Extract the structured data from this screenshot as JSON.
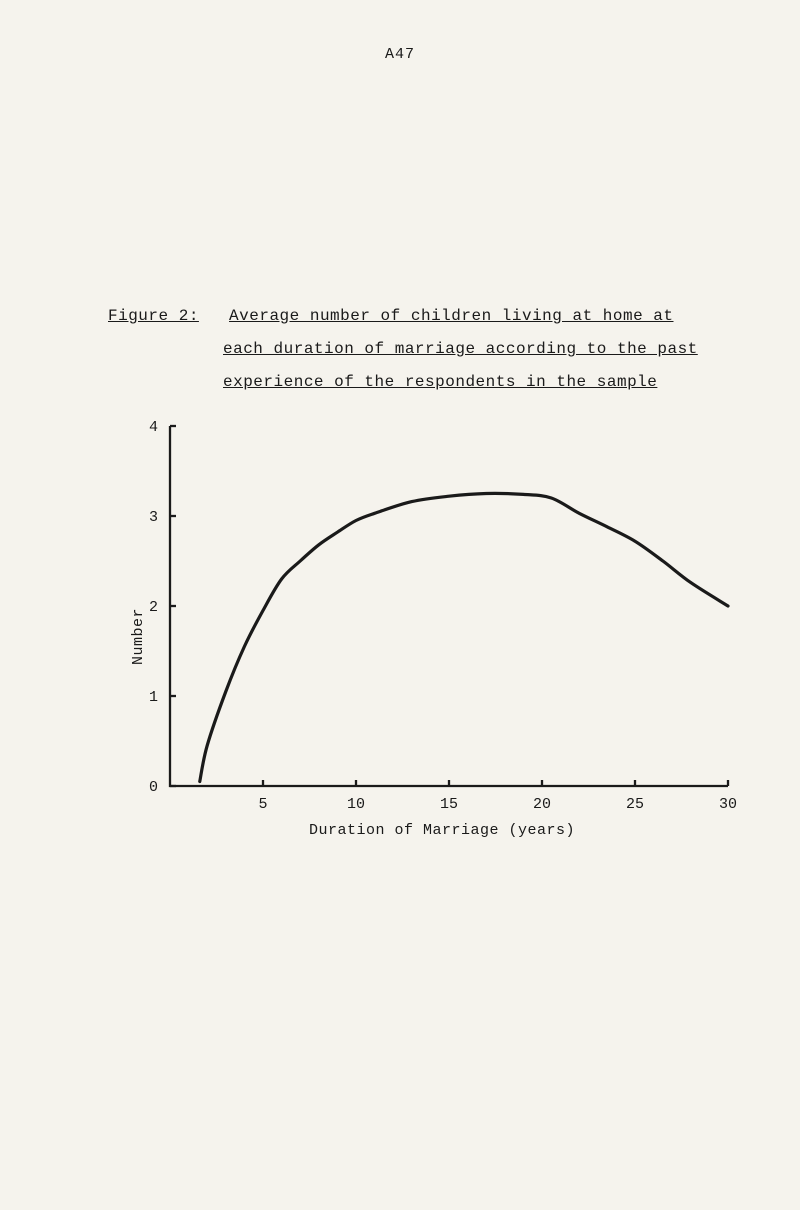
{
  "page_number": "A47",
  "caption": {
    "lead": "Figure 2:",
    "line1": "Average number of children living at home at",
    "line2": "each duration of marriage according to the past",
    "line3": "experience of the respondents in the sample"
  },
  "chart": {
    "type": "line",
    "background_color": "#f5f3ed",
    "axis_color": "#1a1a1a",
    "line_color": "#1a1a1a",
    "line_width": 3.2,
    "axis_width": 2.3,
    "xlabel": "Duration of Marriage (years)",
    "ylabel": "Number",
    "xlim": [
      0,
      30
    ],
    "ylim": [
      0,
      4
    ],
    "xtick_values": [
      5,
      10,
      15,
      20,
      25,
      30
    ],
    "xtick_labels": [
      "5",
      "10",
      "15",
      "20",
      "25",
      "30"
    ],
    "ytick_values": [
      0,
      1,
      2,
      3,
      4
    ],
    "ytick_labels": [
      "0",
      "1",
      "2",
      "3",
      "4"
    ],
    "series": {
      "x": [
        1.6,
        2,
        3,
        4,
        5,
        6,
        7,
        8,
        9,
        10,
        11,
        13,
        15,
        17,
        19,
        20.5,
        22,
        23.5,
        25,
        26.5,
        28,
        30
      ],
      "y": [
        0.05,
        0.45,
        1.05,
        1.55,
        1.95,
        2.3,
        2.5,
        2.68,
        2.82,
        2.95,
        3.03,
        3.16,
        3.22,
        3.25,
        3.24,
        3.2,
        3.03,
        2.88,
        2.72,
        2.5,
        2.26,
        2.0
      ]
    },
    "label_fontsize": 15,
    "tick_fontsize": 15,
    "font_family": "Courier New"
  }
}
